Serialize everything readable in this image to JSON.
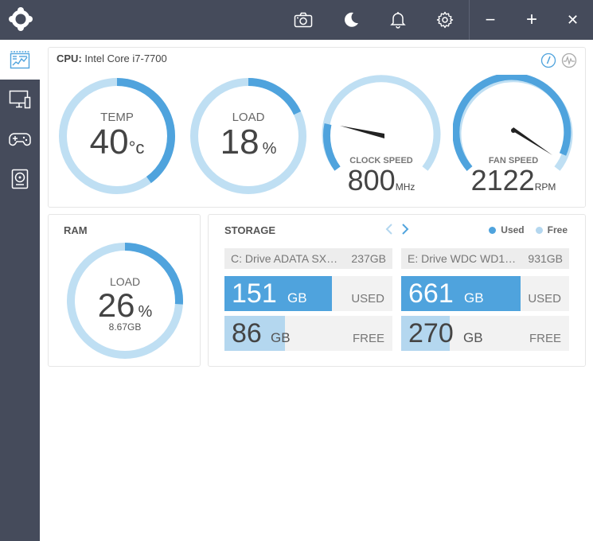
{
  "colors": {
    "topbar": "#454b5b",
    "accent": "#4fa3dd",
    "track": "#bfdff3",
    "free_fill": "#b4d7ef",
    "card_border": "#e6e6e6"
  },
  "topbar": {
    "logo_icon": "app-logo-icon",
    "buttons": [
      "camera-icon",
      "moon-icon",
      "bell-icon",
      "gear-icon",
      "minimize-icon",
      "plus-icon",
      "close-icon"
    ],
    "minimize_label": "−",
    "maximize_label": "+",
    "close_label": "✕"
  },
  "sidebar": {
    "items": [
      {
        "icon": "dashboard-icon",
        "active": true
      },
      {
        "icon": "monitor-icon",
        "active": false
      },
      {
        "icon": "gamepad-icon",
        "active": false
      },
      {
        "icon": "disk-icon",
        "active": false
      }
    ]
  },
  "cpu": {
    "title_prefix": "CPU:",
    "title_name": "Intel Core i7-7700",
    "temp": {
      "label": "TEMP",
      "value": "40",
      "unit": "°c",
      "fraction": 0.4
    },
    "load": {
      "label": "LOAD",
      "value": "18",
      "unit": "%",
      "fraction": 0.18
    },
    "clock": {
      "label": "CLOCK SPEED",
      "value": "800",
      "unit": "MHz",
      "fraction": 0.18
    },
    "fan": {
      "label": "FAN SPEED",
      "value": "2122",
      "unit": "RPM",
      "fraction": 0.85
    }
  },
  "ram": {
    "title": "RAM",
    "load_label": "LOAD",
    "value": "26",
    "unit": "%",
    "used": "8.67GB",
    "fraction": 0.26
  },
  "storage": {
    "title": "STORAGE",
    "legend_used": "Used",
    "legend_free": "Free",
    "drives": [
      {
        "name": "C: Drive ADATA SX…",
        "capacity": "237GB",
        "used": "151",
        "free": "86",
        "unit": "GB",
        "used_label": "USED",
        "free_label": "FREE",
        "used_fraction": 0.64,
        "free_fraction": 0.36
      },
      {
        "name": "E: Drive WDC WD1…",
        "capacity": "931GB",
        "used": "661",
        "free": "270",
        "unit": "GB",
        "used_label": "USED",
        "free_label": "FREE",
        "used_fraction": 0.71,
        "free_fraction": 0.29
      }
    ]
  }
}
